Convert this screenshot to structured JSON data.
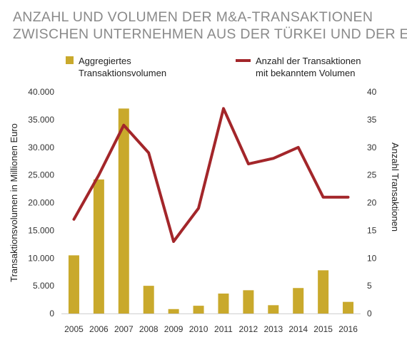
{
  "chart_data": {
    "type": "bar+line",
    "title_lines": [
      "ANZAHL UND VOLUMEN DER M&A-TRANSAKTIONEN",
      "ZWISCHEN UNTERNEHMEN AUS DER TÜRKEI UND DER EU"
    ],
    "categories": [
      "2005",
      "2006",
      "2007",
      "2008",
      "2009",
      "2010",
      "2011",
      "2012",
      "2013",
      "2014",
      "2015",
      "2016"
    ],
    "series": [
      {
        "name": "Aggregiertes Transaktionsvolumen",
        "legend_lines": [
          "Aggregiertes",
          "Transaktionsvolumen"
        ],
        "type": "bar",
        "axis": "left",
        "color": "#c9a92c",
        "values": [
          10500,
          24200,
          37000,
          5000,
          800,
          1400,
          3600,
          4200,
          1500,
          4600,
          7800,
          2100
        ]
      },
      {
        "name": "Anzahl der Transaktionen mit bekanntem Volumen",
        "legend_lines": [
          "Anzahl der Transaktionen",
          "mit bekanntem Volumen"
        ],
        "type": "line",
        "axis": "right",
        "color": "#a3262a",
        "values": [
          17,
          25,
          34,
          29,
          13,
          19,
          37,
          27,
          28,
          30,
          21,
          21
        ]
      }
    ],
    "ylabel_left": "Transaktionsvolumen in Millionen Euro",
    "ylabel_right": "Anzahl Transaktionen",
    "ylim_left": [
      0,
      40000
    ],
    "ylim_right": [
      0,
      40
    ],
    "yticks_left": [
      "0",
      "5.000",
      "10.000",
      "15.000",
      "20.000",
      "25.000",
      "30.000",
      "35.000",
      "40.000"
    ],
    "yticks_right": [
      "0",
      "5",
      "10",
      "15",
      "20",
      "25",
      "30",
      "35",
      "40"
    ],
    "legend_position": "top",
    "grid": false
  }
}
